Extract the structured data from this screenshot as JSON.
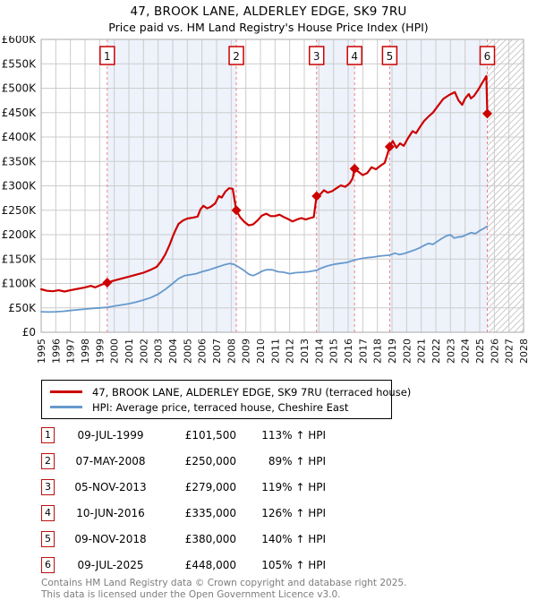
{
  "title": "47, BROOK LANE, ALDERLEY EDGE, SK9 7RU",
  "subtitle": "Price paid vs. HM Land Registry's House Price Index (HPI)",
  "legend": [
    {
      "label": "47, BROOK LANE, ALDERLEY EDGE, SK9 7RU (terraced house)",
      "color": "#cc0000"
    },
    {
      "label": "HPI: Average price, terraced house, Cheshire East",
      "color": "#6699cc"
    }
  ],
  "sales": [
    {
      "num": "1",
      "date": "09-JUL-1999",
      "price": "£101,500",
      "hpi": "113% ↑ HPI",
      "year": 1999.52,
      "value": 101500
    },
    {
      "num": "2",
      "date": "07-MAY-2008",
      "price": "£250,000",
      "hpi": "89% ↑ HPI",
      "year": 2008.35,
      "value": 250000
    },
    {
      "num": "3",
      "date": "05-NOV-2013",
      "price": "£279,000",
      "hpi": "119% ↑ HPI",
      "year": 2013.84,
      "value": 279000
    },
    {
      "num": "4",
      "date": "10-JUN-2016",
      "price": "£335,000",
      "hpi": "126% ↑ HPI",
      "year": 2016.44,
      "value": 335000
    },
    {
      "num": "5",
      "date": "09-NOV-2018",
      "price": "£380,000",
      "hpi": "140% ↑ HPI",
      "year": 2018.84,
      "value": 380000
    },
    {
      "num": "6",
      "date": "09-JUL-2025",
      "price": "£448,000",
      "hpi": "105% ↑ HPI",
      "year": 2025.52,
      "value": 448000
    }
  ],
  "footer": [
    "Contains HM Land Registry data © Crown copyright and database right 2025.",
    "This data is licensed under the Open Government Licence v3.0."
  ],
  "chart_data": {
    "type": "line",
    "title": "47, BROOK LANE, ALDERLEY EDGE, SK9 7RU",
    "subtitle": "Price paid vs. HM Land Registry's House Price Index (HPI)",
    "xlabel": "",
    "ylabel": "Price",
    "x_range": [
      1995,
      2028
    ],
    "y_range": [
      0,
      600000
    ],
    "x_ticks": [
      1995,
      1996,
      1997,
      1998,
      1999,
      2000,
      2001,
      2002,
      2003,
      2004,
      2005,
      2006,
      2007,
      2008,
      2009,
      2010,
      2011,
      2012,
      2013,
      2014,
      2015,
      2016,
      2017,
      2018,
      2019,
      2020,
      2021,
      2022,
      2023,
      2024,
      2025,
      2026,
      2027,
      2028
    ],
    "y_ticks": [
      {
        "label": "£0",
        "value": 0
      },
      {
        "label": "£50K",
        "value": 50000
      },
      {
        "label": "£100K",
        "value": 100000
      },
      {
        "label": "£150K",
        "value": 150000
      },
      {
        "label": "£200K",
        "value": 200000
      },
      {
        "label": "£250K",
        "value": 250000
      },
      {
        "label": "£300K",
        "value": 300000
      },
      {
        "label": "£350K",
        "value": 350000
      },
      {
        "label": "£400K",
        "value": 400000
      },
      {
        "label": "£450K",
        "value": 450000
      },
      {
        "label": "£500K",
        "value": 500000
      },
      {
        "label": "£550K",
        "value": 550000
      },
      {
        "label": "£600K",
        "value": 600000
      }
    ],
    "grid": true,
    "legend_position": "below",
    "shaded_periods": [
      [
        1999.52,
        2008.35
      ],
      [
        2013.84,
        2016.44
      ],
      [
        2018.84,
        2025.52
      ]
    ],
    "hatch_from": 2025.52,
    "colors": {
      "price": "#cc0000",
      "hpi": "#6699cc",
      "dashed": "#f08080",
      "shade": "#edf2fb",
      "grid": "#cccccc",
      "border": "#aaaaaa",
      "hatch": "#cccccc",
      "label_box_fill": "#ffffff"
    },
    "series": [
      {
        "name": "47, BROOK LANE, ALDERLEY EDGE, SK9 7RU (terraced house)",
        "color": "#cc0000",
        "points": [
          [
            1995.0,
            88000
          ],
          [
            1995.4,
            85000
          ],
          [
            1995.8,
            84000
          ],
          [
            1996.2,
            86000
          ],
          [
            1996.6,
            83500
          ],
          [
            1997.0,
            86000
          ],
          [
            1997.5,
            89000
          ],
          [
            1998.0,
            92000
          ],
          [
            1998.4,
            95000
          ],
          [
            1998.7,
            92000
          ],
          [
            1999.0,
            96000
          ],
          [
            1999.3,
            99000
          ],
          [
            1999.52,
            101500
          ],
          [
            2000.0,
            106000
          ],
          [
            2000.5,
            110000
          ],
          [
            2001.0,
            114000
          ],
          [
            2001.5,
            118000
          ],
          [
            2002.0,
            122000
          ],
          [
            2002.5,
            128000
          ],
          [
            2002.9,
            134000
          ],
          [
            2003.2,
            145000
          ],
          [
            2003.5,
            160000
          ],
          [
            2003.8,
            180000
          ],
          [
            2004.0,
            196000
          ],
          [
            2004.2,
            210000
          ],
          [
            2004.4,
            222000
          ],
          [
            2004.7,
            229000
          ],
          [
            2005.0,
            233000
          ],
          [
            2005.4,
            235000
          ],
          [
            2005.7,
            237000
          ],
          [
            2005.9,
            252000
          ],
          [
            2006.1,
            259000
          ],
          [
            2006.35,
            254000
          ],
          [
            2006.6,
            257000
          ],
          [
            2006.9,
            264000
          ],
          [
            2007.15,
            279000
          ],
          [
            2007.35,
            276000
          ],
          [
            2007.6,
            288000
          ],
          [
            2007.85,
            295000
          ],
          [
            2008.1,
            294000
          ],
          [
            2008.35,
            250000
          ],
          [
            2008.6,
            236000
          ],
          [
            2008.9,
            226000
          ],
          [
            2009.2,
            219000
          ],
          [
            2009.5,
            221000
          ],
          [
            2009.8,
            229000
          ],
          [
            2010.1,
            239000
          ],
          [
            2010.4,
            243000
          ],
          [
            2010.7,
            238000
          ],
          [
            2011.0,
            238000
          ],
          [
            2011.3,
            241000
          ],
          [
            2011.6,
            236000
          ],
          [
            2011.9,
            232000
          ],
          [
            2012.2,
            227000
          ],
          [
            2012.5,
            231000
          ],
          [
            2012.8,
            234000
          ],
          [
            2013.1,
            231000
          ],
          [
            2013.4,
            234000
          ],
          [
            2013.65,
            236000
          ],
          [
            2013.84,
            279000
          ],
          [
            2014.1,
            283000
          ],
          [
            2014.35,
            291000
          ],
          [
            2014.6,
            286000
          ],
          [
            2014.9,
            289000
          ],
          [
            2015.2,
            295000
          ],
          [
            2015.5,
            301000
          ],
          [
            2015.8,
            298000
          ],
          [
            2016.1,
            305000
          ],
          [
            2016.3,
            315000
          ],
          [
            2016.44,
            335000
          ],
          [
            2016.7,
            329000
          ],
          [
            2017.0,
            322000
          ],
          [
            2017.3,
            326000
          ],
          [
            2017.6,
            338000
          ],
          [
            2017.9,
            334000
          ],
          [
            2018.2,
            341000
          ],
          [
            2018.5,
            347000
          ],
          [
            2018.84,
            380000
          ],
          [
            2019.05,
            392000
          ],
          [
            2019.3,
            378000
          ],
          [
            2019.55,
            387000
          ],
          [
            2019.8,
            382000
          ],
          [
            2020.1,
            398000
          ],
          [
            2020.4,
            412000
          ],
          [
            2020.65,
            408000
          ],
          [
            2020.9,
            420000
          ],
          [
            2021.2,
            433000
          ],
          [
            2021.5,
            442000
          ],
          [
            2021.8,
            450000
          ],
          [
            2022.1,
            462000
          ],
          [
            2022.5,
            478000
          ],
          [
            2022.9,
            486000
          ],
          [
            2023.3,
            492000
          ],
          [
            2023.55,
            475000
          ],
          [
            2023.8,
            466000
          ],
          [
            2024.0,
            479000
          ],
          [
            2024.25,
            488000
          ],
          [
            2024.4,
            479000
          ],
          [
            2024.6,
            484000
          ],
          [
            2024.9,
            497000
          ],
          [
            2025.15,
            510000
          ],
          [
            2025.45,
            525000
          ],
          [
            2025.52,
            448000
          ]
        ]
      },
      {
        "name": "HPI: Average price, terraced house, Cheshire East",
        "color": "#6699cc",
        "points": [
          [
            1995.0,
            42000
          ],
          [
            1995.5,
            41500
          ],
          [
            1996.0,
            42000
          ],
          [
            1996.5,
            43000
          ],
          [
            1997.0,
            44500
          ],
          [
            1997.5,
            46000
          ],
          [
            1998.0,
            47500
          ],
          [
            1998.5,
            49000
          ],
          [
            1999.0,
            50000
          ],
          [
            1999.5,
            51000
          ],
          [
            2000.0,
            53500
          ],
          [
            2000.5,
            56000
          ],
          [
            2001.0,
            58500
          ],
          [
            2001.5,
            62000
          ],
          [
            2002.0,
            66000
          ],
          [
            2002.5,
            71000
          ],
          [
            2003.0,
            78000
          ],
          [
            2003.5,
            88000
          ],
          [
            2004.0,
            100000
          ],
          [
            2004.4,
            110000
          ],
          [
            2004.8,
            116000
          ],
          [
            2005.2,
            118000
          ],
          [
            2005.6,
            120000
          ],
          [
            2006.0,
            124000
          ],
          [
            2006.5,
            128000
          ],
          [
            2007.0,
            133000
          ],
          [
            2007.5,
            138000
          ],
          [
            2007.9,
            141000
          ],
          [
            2008.2,
            139000
          ],
          [
            2008.5,
            134000
          ],
          [
            2008.9,
            126000
          ],
          [
            2009.2,
            119000
          ],
          [
            2009.5,
            116000
          ],
          [
            2009.8,
            120000
          ],
          [
            2010.1,
            125000
          ],
          [
            2010.4,
            128000
          ],
          [
            2010.8,
            128000
          ],
          [
            2011.2,
            124000
          ],
          [
            2011.6,
            123000
          ],
          [
            2012.0,
            120000
          ],
          [
            2012.4,
            122000
          ],
          [
            2012.9,
            123000
          ],
          [
            2013.3,
            124000
          ],
          [
            2013.84,
            127000
          ],
          [
            2014.2,
            132000
          ],
          [
            2014.6,
            136000
          ],
          [
            2015.0,
            139000
          ],
          [
            2015.4,
            141000
          ],
          [
            2015.9,
            143000
          ],
          [
            2016.44,
            148000
          ],
          [
            2016.9,
            151000
          ],
          [
            2017.3,
            153000
          ],
          [
            2017.7,
            154000
          ],
          [
            2018.1,
            156000
          ],
          [
            2018.5,
            157000
          ],
          [
            2018.84,
            158000
          ],
          [
            2019.2,
            162000
          ],
          [
            2019.5,
            159000
          ],
          [
            2019.8,
            161000
          ],
          [
            2020.1,
            164000
          ],
          [
            2020.5,
            168000
          ],
          [
            2020.9,
            173000
          ],
          [
            2021.2,
            178000
          ],
          [
            2021.5,
            182000
          ],
          [
            2021.8,
            180000
          ],
          [
            2022.1,
            186000
          ],
          [
            2022.4,
            192000
          ],
          [
            2022.7,
            197000
          ],
          [
            2023.0,
            200000
          ],
          [
            2023.25,
            193000
          ],
          [
            2023.5,
            195000
          ],
          [
            2023.8,
            196000
          ],
          [
            2024.1,
            200000
          ],
          [
            2024.4,
            204000
          ],
          [
            2024.7,
            202000
          ],
          [
            2025.0,
            208000
          ],
          [
            2025.3,
            213000
          ],
          [
            2025.5,
            217000
          ]
        ]
      }
    ]
  }
}
